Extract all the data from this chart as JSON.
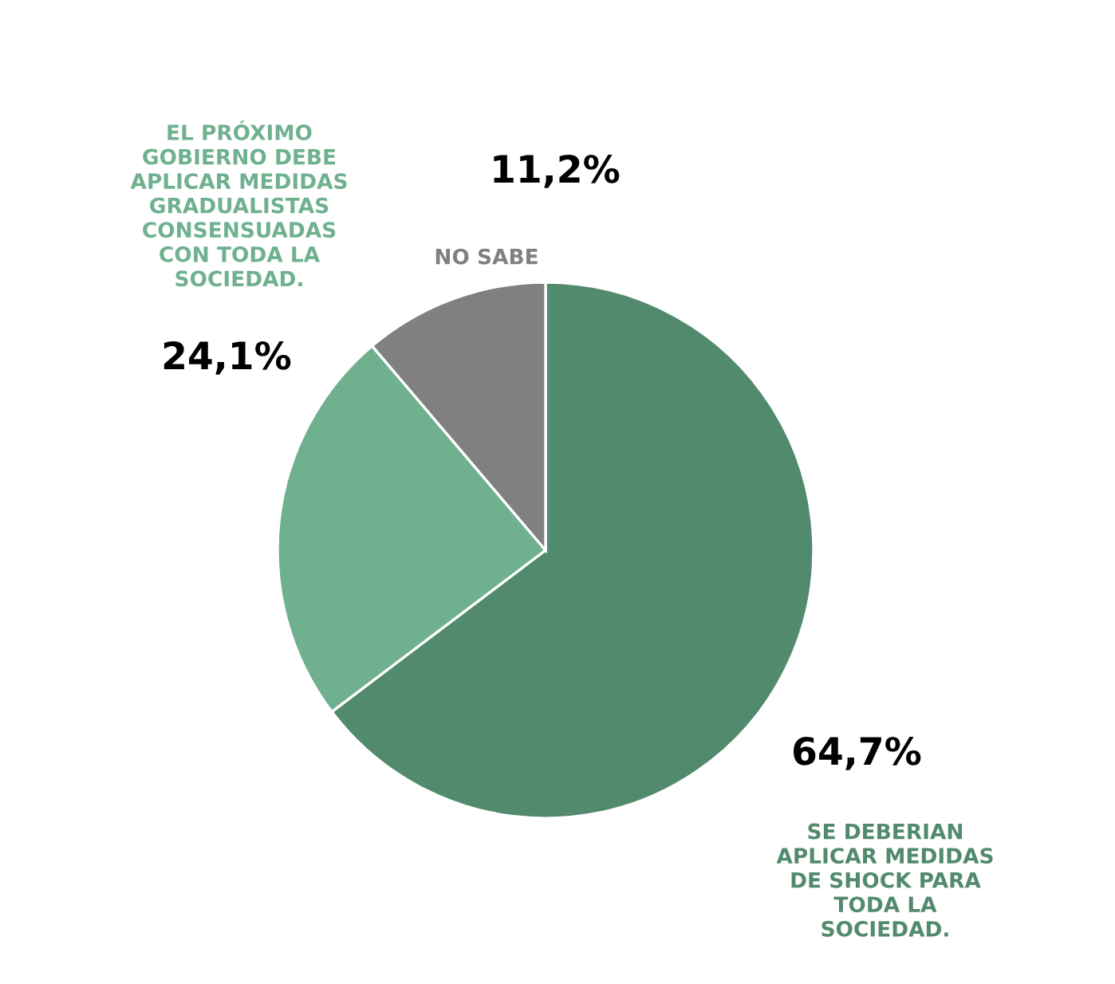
{
  "chart_data": {
    "type": "pie",
    "categories": [
      "SE DEBERIAN\nAPLICAR MEDIDAS\nDE SHOCK PARA\nTODA LA\nSOCIEDAD.",
      "EL PRÓXIMO\nGOBIERNO DEBE\nAPLICAR MEDIDAS\nGRADUALISTAS\nCONSENSUADAS\nCON TODA LA\nSOCIEDAD.",
      "NO SABE"
    ],
    "values": [
      64.7,
      24.1,
      11.2
    ],
    "value_labels": [
      "64,7%",
      "24,1%",
      "11,2%"
    ],
    "colors": [
      "#528a6d",
      "#6fb08f",
      "#808080"
    ]
  }
}
